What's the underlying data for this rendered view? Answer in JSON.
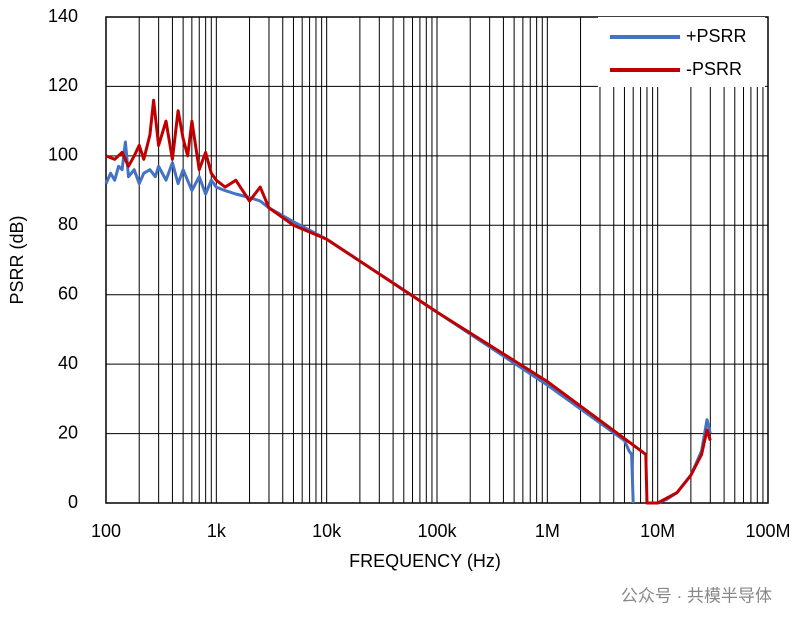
{
  "chart_data": {
    "type": "line",
    "x_label": "FREQUENCY (Hz)",
    "y_label": "PSRR (dB)",
    "log_x": true,
    "grid": true,
    "legend": "top-right",
    "xlim": [
      100,
      100000000
    ],
    "xticks": [
      100,
      {
        "value": 1000,
        "label": "1k"
      },
      {
        "value": 10000,
        "label": "10k"
      },
      {
        "value": 100000,
        "label": "100k"
      },
      {
        "value": 1000000,
        "label": "1M"
      },
      {
        "value": 10000000,
        "label": "10M"
      },
      {
        "value": 100000000,
        "label": "100M"
      }
    ],
    "xminorticks": [
      200,
      300,
      400,
      500,
      600,
      700,
      800,
      900,
      2000,
      3000,
      4000,
      5000,
      6000,
      7000,
      8000,
      9000,
      20000,
      30000,
      40000,
      50000,
      60000,
      70000,
      80000,
      90000,
      200000,
      300000,
      400000,
      500000,
      600000,
      700000,
      800000,
      900000,
      2000000,
      3000000,
      4000000,
      5000000,
      6000000,
      7000000,
      8000000,
      9000000,
      20000000,
      30000000,
      40000000,
      50000000,
      60000000,
      70000000,
      80000000,
      90000000
    ],
    "ylim": [
      0,
      140
    ],
    "yticks": [
      0,
      20,
      40,
      60,
      80,
      100,
      120,
      140
    ],
    "series": [
      {
        "name": "+PSRR",
        "color": "#4472c4",
        "x": [
          100,
          110,
          120,
          130,
          140,
          150,
          160,
          180,
          200,
          220,
          250,
          280,
          300,
          350,
          400,
          450,
          500,
          600,
          700,
          800,
          900,
          1000,
          1200,
          1500,
          2000,
          2500,
          3000,
          5000,
          10000,
          100000,
          1000000,
          5000000,
          5500000,
          5800000,
          6000000,
          7000000,
          8500000,
          10000000,
          12000000,
          15000000,
          20000000,
          25000000,
          28000000,
          30000000
        ],
        "values": [
          92,
          95,
          93,
          97,
          96,
          104,
          94,
          96,
          92,
          95,
          96,
          94,
          97,
          93,
          98,
          92,
          96,
          90,
          94,
          89,
          93,
          91,
          90,
          89,
          88,
          87,
          85,
          81,
          76,
          55,
          34,
          18,
          15,
          14,
          0,
          null,
          0,
          0,
          1,
          3,
          8,
          15,
          24,
          20
        ]
      },
      {
        "name": "-PSRR",
        "color": "#c00000",
        "x": [
          100,
          120,
          140,
          160,
          180,
          200,
          220,
          250,
          270,
          300,
          350,
          400,
          450,
          500,
          550,
          600,
          700,
          800,
          900,
          1000,
          1200,
          1500,
          2000,
          2500,
          3000,
          5000,
          10000,
          100000,
          1000000,
          7800000,
          8000000,
          9000000,
          10000000,
          15000000,
          20000000,
          25000000,
          28000000,
          30000000
        ],
        "values": [
          100,
          99,
          101,
          97,
          100,
          103,
          99,
          106,
          116,
          103,
          110,
          99,
          113,
          105,
          100,
          110,
          96,
          101,
          95,
          93,
          91,
          93,
          87,
          91,
          85,
          80,
          76,
          55,
          35,
          14,
          0,
          0,
          0,
          3,
          8,
          14,
          21,
          18
        ]
      }
    ]
  },
  "watermark": "公众号 · 共模半导体"
}
